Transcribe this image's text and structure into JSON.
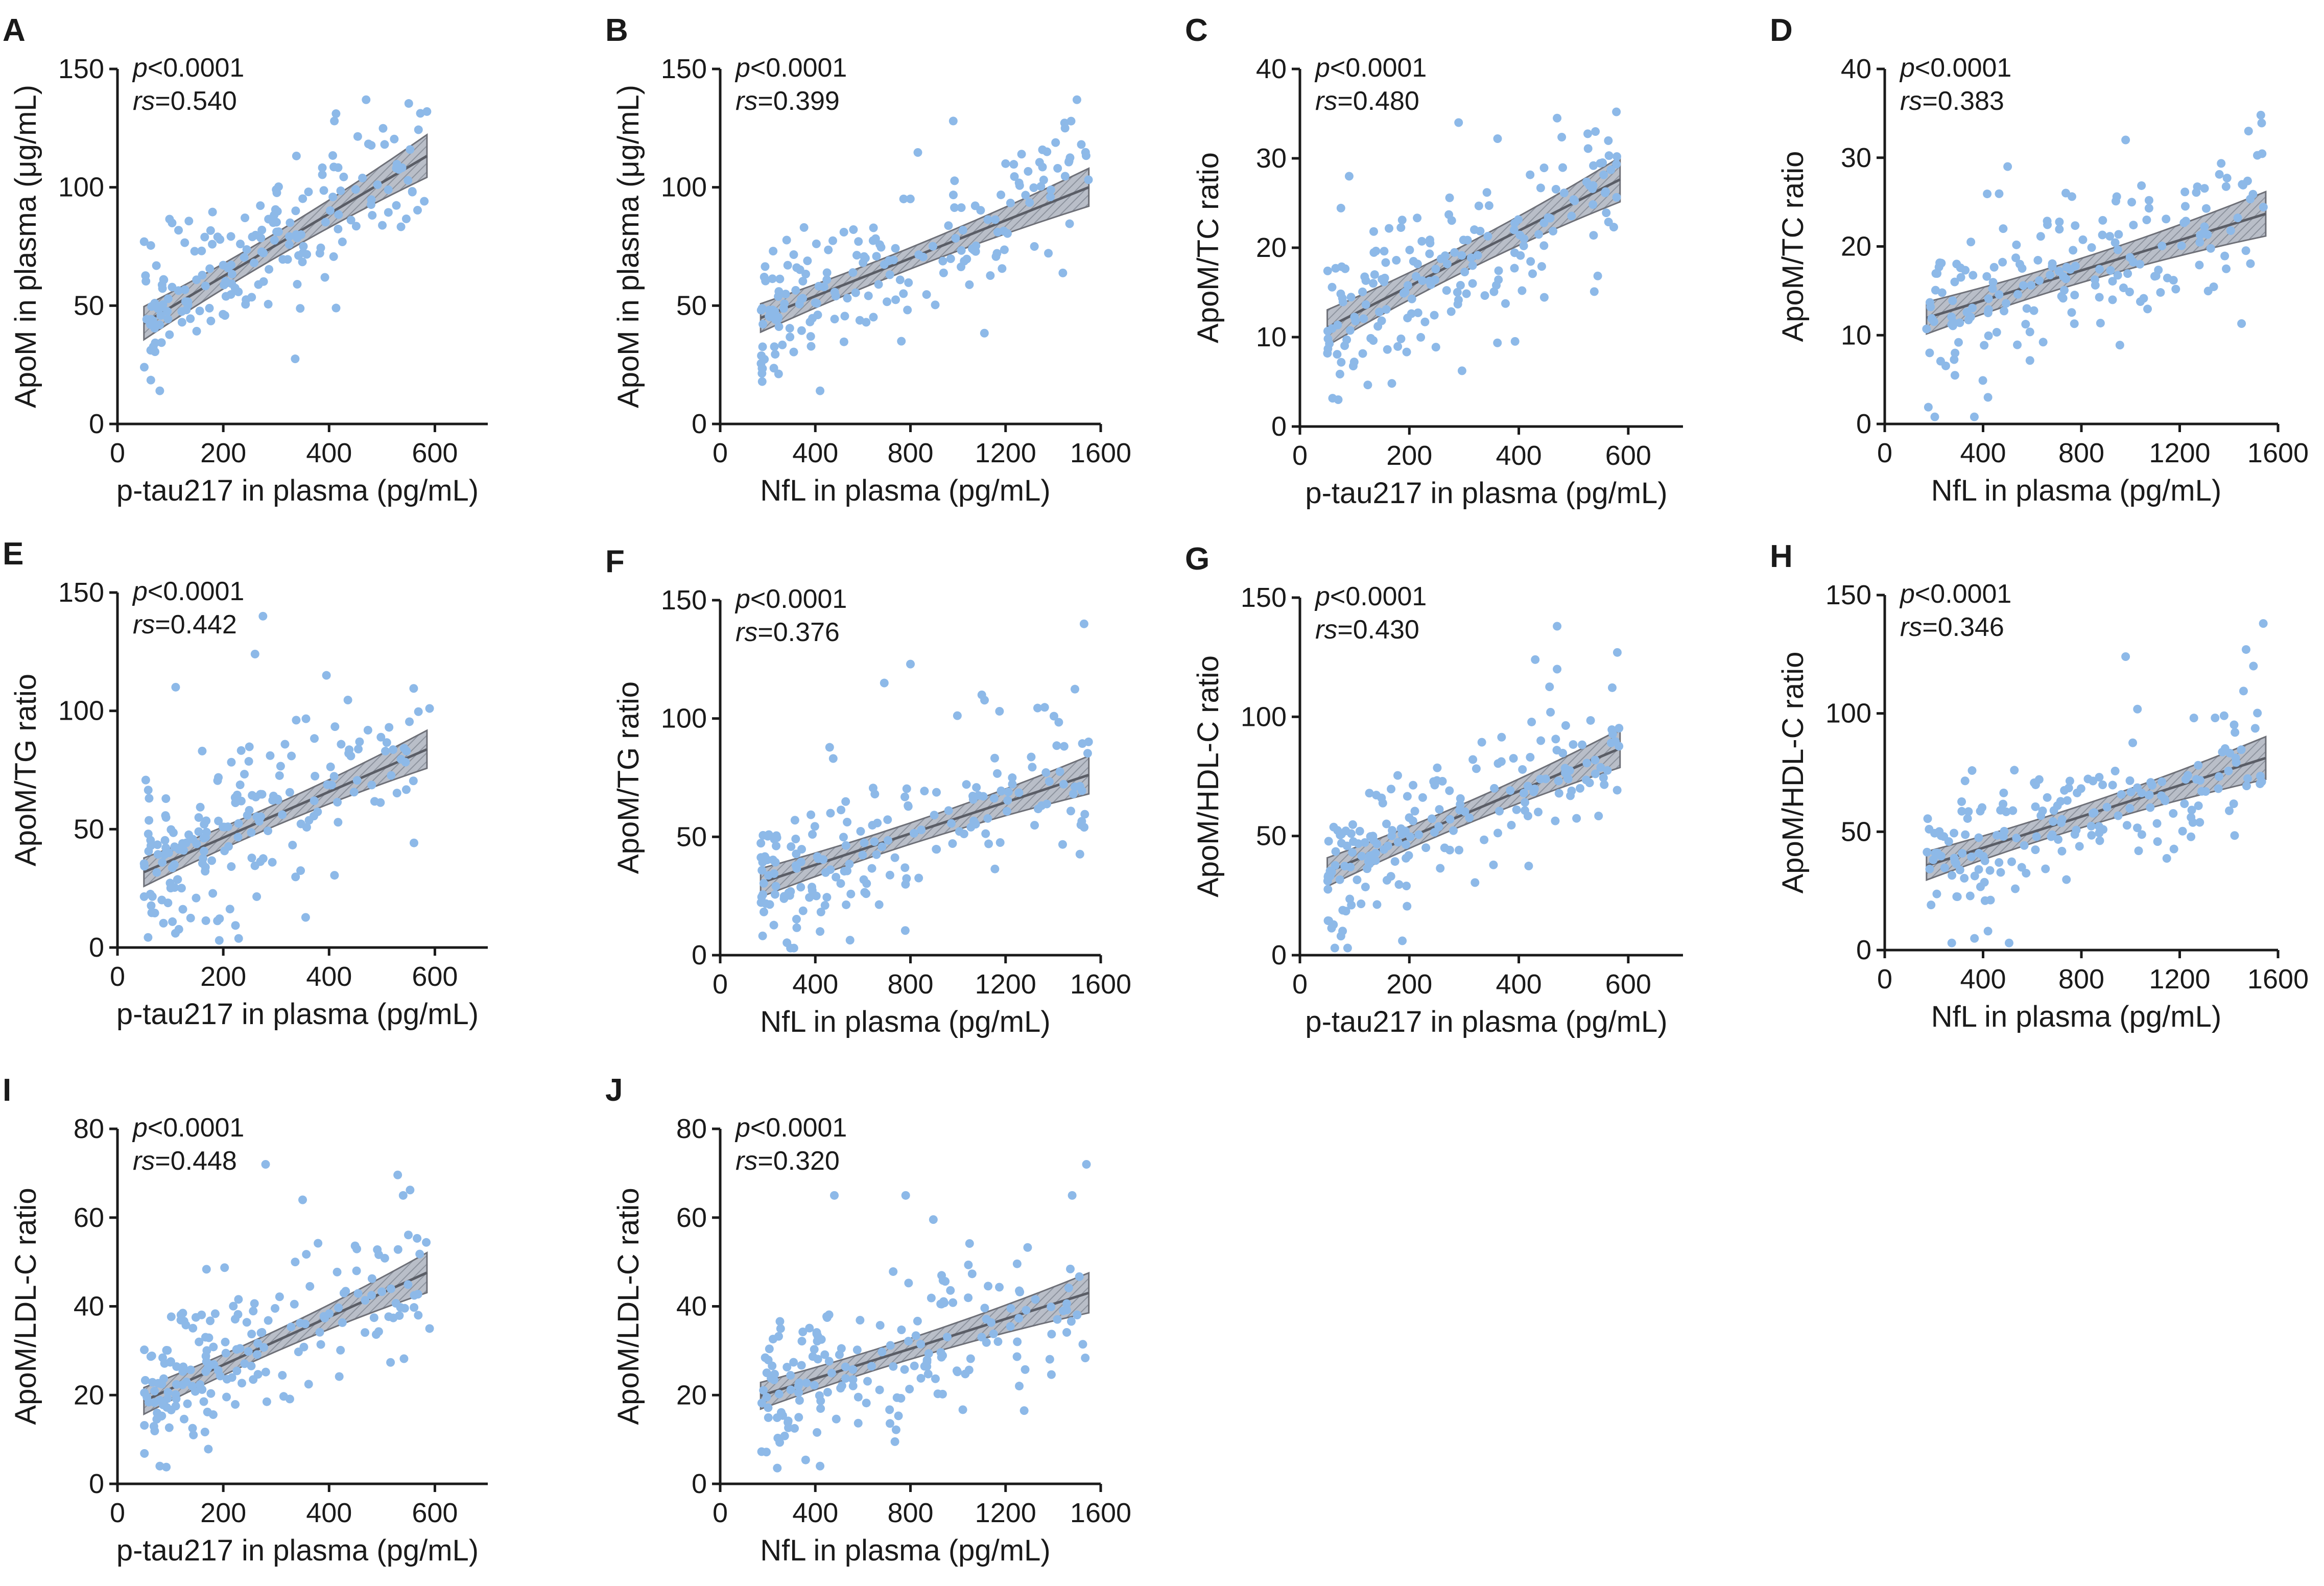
{
  "figure": {
    "colors": {
      "points": "#8db9e8",
      "band": "#9aa0ab",
      "line": "#5a5d66",
      "axis": "#1a1a1a"
    }
  },
  "chart_data": [
    {
      "id": "A",
      "letter": "A",
      "type": "scatter",
      "p_label": "p",
      "p_value": "<0.0001",
      "rs_label": "rs",
      "rs_value": "=0.540",
      "xlabel": "p-tau217 in plasma (pg/mL)",
      "ylabel": "ApoM in plasma (μg/mL)",
      "xlim": [
        0,
        700
      ],
      "ylim": [
        0,
        150
      ],
      "xticks": [
        0,
        200,
        400,
        600
      ],
      "yticks": [
        0,
        50,
        100,
        150
      ],
      "x_range": [
        50,
        585
      ],
      "fit": {
        "intercept": 36,
        "slope": 0.132,
        "ci_low": 7,
        "ci_high": 9
      },
      "n_points": 180,
      "seed": 11,
      "noise_sd": 14,
      "outliers": [
        [
          470,
          137
        ],
        [
          585,
          132
        ],
        [
          410,
          128
        ],
        [
          300,
          99
        ],
        [
          80,
          14
        ]
      ]
    },
    {
      "id": "B",
      "letter": "B",
      "type": "scatter",
      "p_label": "p",
      "p_value": "<0.0001",
      "rs_label": "rs",
      "rs_value": "=0.399",
      "xlabel": "NfL in plasma (pg/mL)",
      "ylabel": "ApoM in plasma (μg/mL)",
      "xlim": [
        0,
        1600
      ],
      "ylim": [
        0,
        150
      ],
      "xticks": [
        0,
        400,
        800,
        1200,
        1600
      ],
      "yticks": [
        0,
        50,
        100,
        150
      ],
      "x_range": [
        170,
        1550
      ],
      "fit": {
        "intercept": 38,
        "slope": 0.04,
        "ci_low": 6,
        "ci_high": 8
      },
      "n_points": 180,
      "seed": 23,
      "noise_sd": 15,
      "outliers": [
        [
          1500,
          137
        ],
        [
          980,
          128
        ],
        [
          1450,
          125
        ],
        [
          420,
          14
        ],
        [
          1200,
          110
        ]
      ]
    },
    {
      "id": "C",
      "letter": "C",
      "type": "scatter",
      "p_label": "p",
      "p_value": "<0.0001",
      "rs_label": "rs",
      "rs_value": "=0.480",
      "xlabel": "p-tau217 in plasma (pg/mL)",
      "ylabel": "ApoM/TC ratio",
      "xlim": [
        0,
        700
      ],
      "ylim": [
        0,
        40
      ],
      "xticks": [
        0,
        200,
        400,
        600
      ],
      "yticks": [
        0,
        10,
        20,
        30,
        40
      ],
      "x_range": [
        50,
        585
      ],
      "fit": {
        "intercept": 9.5,
        "slope": 0.031,
        "ci_low": 2,
        "ci_high": 2.5
      },
      "n_points": 180,
      "seed": 37,
      "noise_sd": 4.5,
      "outliers": [
        [
          470,
          34.5
        ],
        [
          290,
          34
        ],
        [
          540,
          33
        ],
        [
          70,
          3
        ],
        [
          90,
          28
        ]
      ]
    },
    {
      "id": "D",
      "letter": "D",
      "type": "scatter",
      "p_label": "p",
      "p_value": "<0.0001",
      "rs_label": "rs",
      "rs_value": "=0.383",
      "xlabel": "NfL in plasma (pg/mL)",
      "ylabel": "ApoM/TC ratio",
      "xlim": [
        0,
        1600
      ],
      "ylim": [
        0,
        40
      ],
      "xticks": [
        0,
        400,
        800,
        1200,
        1600
      ],
      "yticks": [
        0,
        10,
        20,
        30,
        40
      ],
      "x_range": [
        170,
        1550
      ],
      "fit": {
        "intercept": 10.5,
        "slope": 0.0085,
        "ci_low": 1.8,
        "ci_high": 2.5
      },
      "n_points": 180,
      "seed": 41,
      "noise_sd": 4.5,
      "outliers": [
        [
          1530,
          34.8
        ],
        [
          1480,
          33
        ],
        [
          980,
          32
        ],
        [
          420,
          3
        ],
        [
          500,
          29
        ]
      ]
    },
    {
      "id": "E",
      "letter": "E",
      "type": "scatter",
      "p_label": "p",
      "p_value": "<0.0001",
      "rs_label": "rs",
      "rs_value": "=0.442",
      "xlabel": "p-tau217 in plasma (pg/mL)",
      "ylabel": "ApoM/TG ratio",
      "xlim": [
        0,
        700
      ],
      "ylim": [
        0,
        150
      ],
      "xticks": [
        0,
        200,
        400,
        600
      ],
      "yticks": [
        0,
        50,
        100,
        150
      ],
      "x_range": [
        50,
        585
      ],
      "fit": {
        "intercept": 27,
        "slope": 0.097,
        "ci_low": 6,
        "ci_high": 8
      },
      "n_points": 180,
      "seed": 53,
      "noise_sd": 17,
      "outliers": [
        [
          275,
          140
        ],
        [
          260,
          124
        ],
        [
          395,
          115
        ],
        [
          110,
          110
        ],
        [
          590,
          101
        ]
      ]
    },
    {
      "id": "F",
      "letter": "F",
      "type": "scatter",
      "p_label": "p",
      "p_value": "<0.0001",
      "rs_label": "rs",
      "rs_value": "=0.376",
      "xlabel": "NfL in plasma (pg/mL)",
      "ylabel": "ApoM/TG ratio",
      "xlim": [
        0,
        1600
      ],
      "ylim": [
        0,
        150
      ],
      "xticks": [
        0,
        400,
        800,
        1200,
        1600
      ],
      "yticks": [
        0,
        50,
        100,
        150
      ],
      "x_range": [
        170,
        1550
      ],
      "fit": {
        "intercept": 25,
        "slope": 0.033,
        "ci_low": 6,
        "ci_high": 8
      },
      "n_points": 180,
      "seed": 67,
      "noise_sd": 17,
      "outliers": [
        [
          1530,
          140
        ],
        [
          800,
          123
        ],
        [
          690,
          115
        ],
        [
          1100,
          110
        ],
        [
          420,
          10
        ]
      ]
    },
    {
      "id": "G",
      "letter": "G",
      "type": "scatter",
      "p_label": "p",
      "p_value": "<0.0001",
      "rs_label": "rs",
      "rs_value": "=0.430",
      "xlabel": "p-tau217 in plasma (pg/mL)",
      "ylabel": "ApoM/HDL-C ratio",
      "xlim": [
        0,
        700
      ],
      "ylim": [
        0,
        150
      ],
      "xticks": [
        0,
        200,
        400,
        600
      ],
      "yticks": [
        0,
        50,
        100,
        150
      ],
      "x_range": [
        50,
        585
      ],
      "fit": {
        "intercept": 30,
        "slope": 0.097,
        "ci_low": 6,
        "ci_high": 8
      },
      "n_points": 180,
      "seed": 79,
      "noise_sd": 15,
      "outliers": [
        [
          470,
          138
        ],
        [
          580,
          127
        ],
        [
          430,
          124
        ],
        [
          470,
          120
        ],
        [
          75,
          8
        ]
      ]
    },
    {
      "id": "H",
      "letter": "H",
      "type": "scatter",
      "p_label": "p",
      "p_value": "<0.0001",
      "rs_label": "rs",
      "rs_value": "=0.346",
      "xlabel": "NfL in plasma (pg/mL)",
      "ylabel": "ApoM/HDL-C ratio",
      "xlim": [
        0,
        1600
      ],
      "ylim": [
        0,
        150
      ],
      "xticks": [
        0,
        400,
        800,
        1200,
        1600
      ],
      "yticks": [
        0,
        50,
        100,
        150
      ],
      "x_range": [
        170,
        1550
      ],
      "fit": {
        "intercept": 30,
        "slope": 0.033,
        "ci_low": 6,
        "ci_high": 9
      },
      "n_points": 180,
      "seed": 83,
      "noise_sd": 15,
      "outliers": [
        [
          1540,
          138
        ],
        [
          1470,
          127
        ],
        [
          980,
          124
        ],
        [
          1500,
          120
        ],
        [
          420,
          8
        ]
      ]
    },
    {
      "id": "I",
      "letter": "I",
      "type": "scatter",
      "p_label": "p",
      "p_value": "<0.0001",
      "rs_label": "rs",
      "rs_value": "=0.448",
      "xlabel": "p-tau217 in plasma (pg/mL)",
      "ylabel": "ApoM/LDL-C ratio",
      "xlim": [
        0,
        700
      ],
      "ylim": [
        0,
        80
      ],
      "xticks": [
        0,
        200,
        400,
        600
      ],
      "yticks": [
        0,
        20,
        40,
        60,
        80
      ],
      "x_range": [
        50,
        585
      ],
      "fit": {
        "intercept": 16,
        "slope": 0.054,
        "ci_low": 3,
        "ci_high": 4.5
      },
      "n_points": 180,
      "seed": 97,
      "noise_sd": 8.5,
      "outliers": [
        [
          280,
          72
        ],
        [
          540,
          65
        ],
        [
          350,
          64
        ],
        [
          80,
          4
        ],
        [
          590,
          35
        ]
      ]
    },
    {
      "id": "J",
      "letter": "J",
      "type": "scatter",
      "p_label": "p",
      "p_value": "<0.0001",
      "rs_label": "rs",
      "rs_value": "=0.320",
      "xlabel": "NfL in plasma (pg/mL)",
      "ylabel": "ApoM/LDL-C ratio",
      "xlim": [
        0,
        1600
      ],
      "ylim": [
        0,
        80
      ],
      "xticks": [
        0,
        400,
        800,
        1200,
        1600
      ],
      "yticks": [
        0,
        20,
        40,
        60,
        80
      ],
      "x_range": [
        170,
        1550
      ],
      "fit": {
        "intercept": 17,
        "slope": 0.0168,
        "ci_low": 3,
        "ci_high": 4.5
      },
      "n_points": 180,
      "seed": 101,
      "noise_sd": 8.5,
      "outliers": [
        [
          1540,
          72
        ],
        [
          480,
          65
        ],
        [
          780,
          65
        ],
        [
          1480,
          65
        ],
        [
          420,
          4
        ]
      ]
    }
  ]
}
